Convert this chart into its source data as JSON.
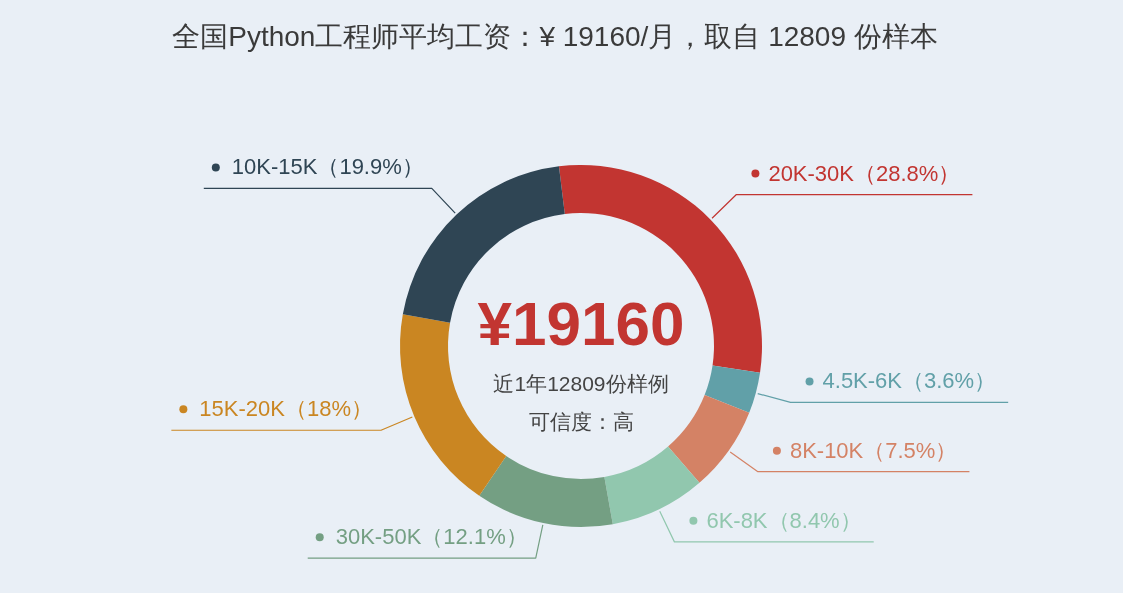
{
  "chart_data": {
    "type": "donut",
    "title": "全国Python工程师平均工资：¥ 19160/月，取自 12809 份样本",
    "categories": [
      "20K-30K",
      "4.5K-6K",
      "8K-10K",
      "6K-8K",
      "30K-50K",
      "15K-20K",
      "10K-15K"
    ],
    "values": [
      28.8,
      3.6,
      7.5,
      8.4,
      12.1,
      18,
      19.9
    ],
    "colors": [
      "#c23531",
      "#61a0a8",
      "#d48265",
      "#91c7ae",
      "#749f83",
      "#ca8622",
      "#2f4554"
    ],
    "value_labels": [
      "（28.8%）",
      "（3.6%）",
      "（7.5%）",
      "（8.4%）",
      "（12.1%）",
      "（18%）",
      "（19.9%）"
    ],
    "legend": true,
    "annotations": [
      "¥19160",
      "近1年12809份样例",
      "可信度：高"
    ]
  }
}
